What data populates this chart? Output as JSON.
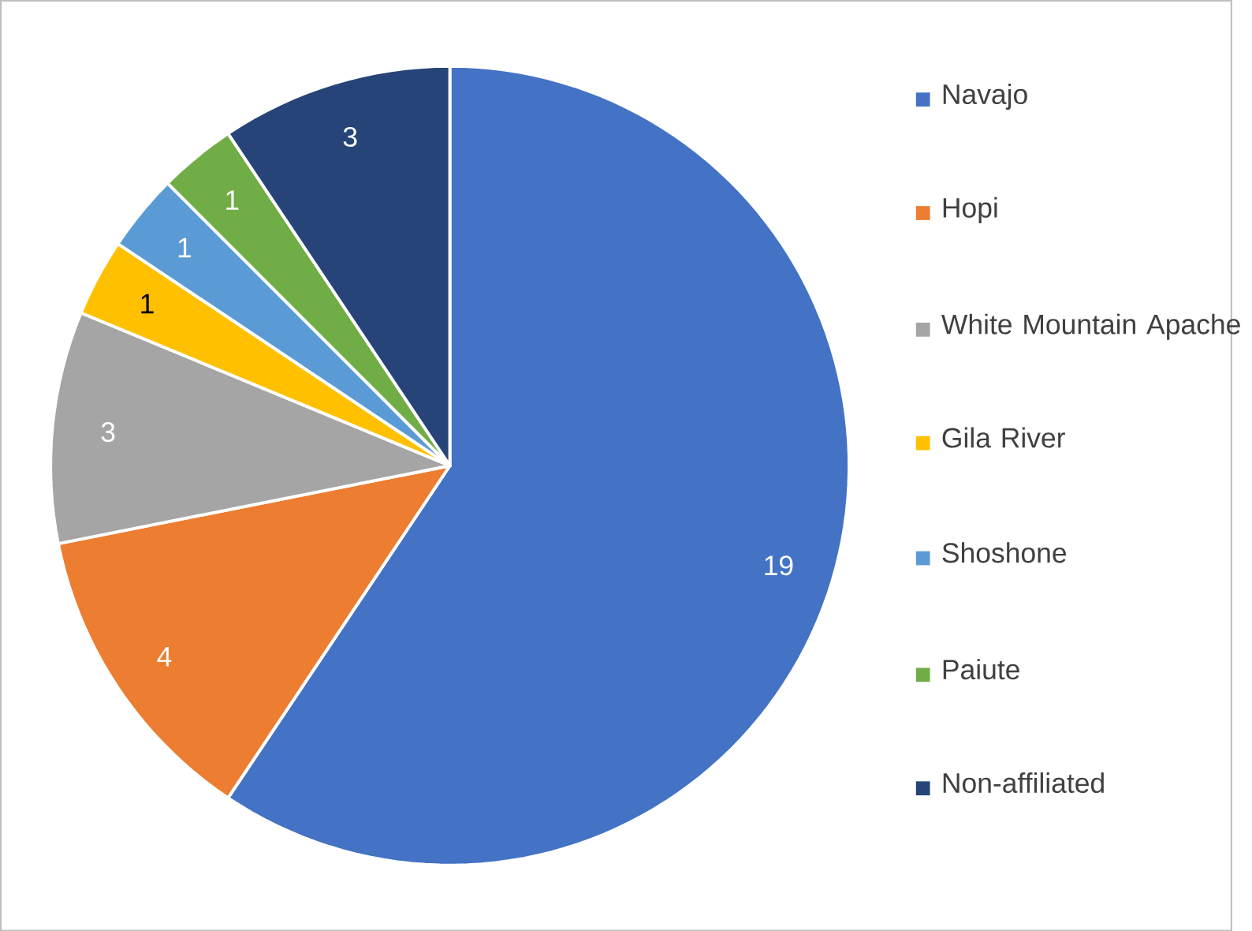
{
  "chart_data": {
    "type": "pie",
    "categories": [
      "Navajo",
      "Hopi",
      "White Mountain Apache",
      "Gila River",
      "Shoshone",
      "Paiute",
      "Non-affiliated"
    ],
    "values": [
      19,
      4,
      3,
      1,
      1,
      1,
      3
    ],
    "colors": [
      "#4472c4",
      "#ed7d31",
      "#a5a5a5",
      "#ffc000",
      "#5b9bd5",
      "#70ad47",
      "#264478"
    ],
    "data_labels": true,
    "legend": "right"
  }
}
